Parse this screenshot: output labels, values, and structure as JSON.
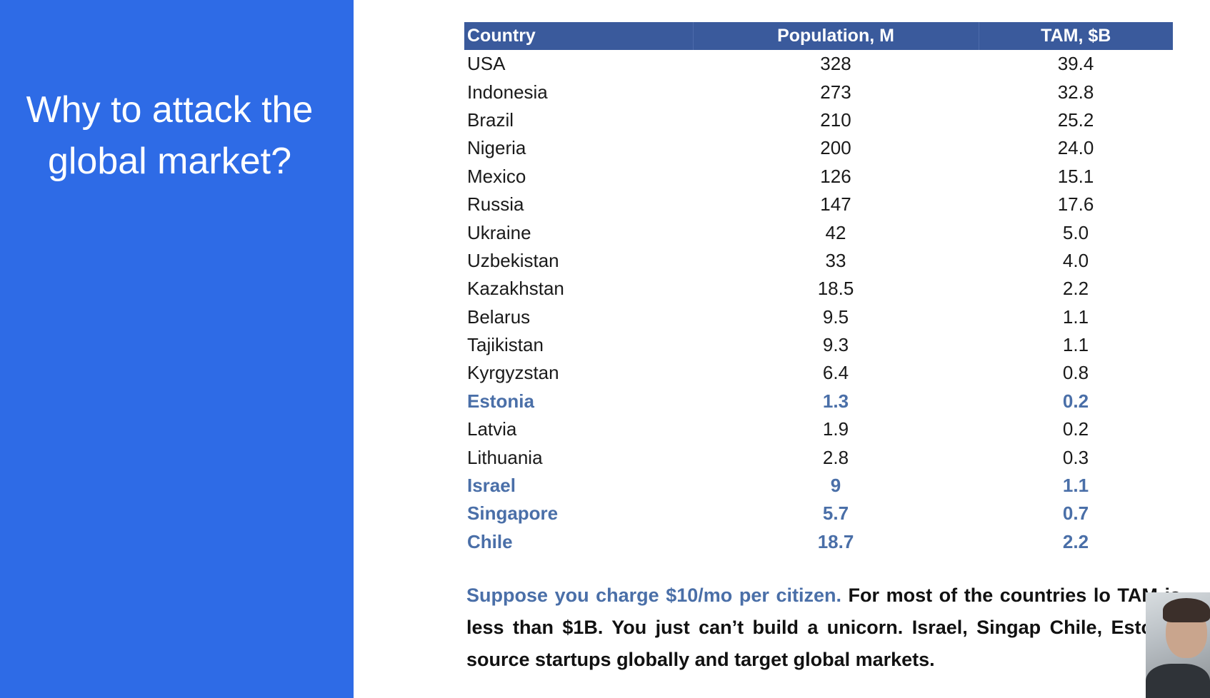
{
  "slide": {
    "title": "Why to attack the\nglobal market?",
    "colors": {
      "left_panel": "#2e6be6",
      "table_header": "#3a5a9c",
      "highlight": "#4a6fa8"
    }
  },
  "table": {
    "headers": {
      "country": "Country",
      "population": "Population, M",
      "tam": "TAM, $B"
    },
    "rows": [
      {
        "country": "USA",
        "population": "328",
        "tam": "39.4"
      },
      {
        "country": "Indonesia",
        "population": "273",
        "tam": "32.8"
      },
      {
        "country": "Brazil",
        "population": "210",
        "tam": "25.2"
      },
      {
        "country": "Nigeria",
        "population": "200",
        "tam": "24.0"
      },
      {
        "country": "Mexico",
        "population": "126",
        "tam": "15.1"
      },
      {
        "country": "Russia",
        "population": "147",
        "tam": "17.6"
      },
      {
        "country": "Ukraine",
        "population": "42",
        "tam": "5.0"
      },
      {
        "country": "Uzbekistan",
        "population": "33",
        "tam": "4.0"
      },
      {
        "country": "Kazakhstan",
        "population": "18.5",
        "tam": "2.2"
      },
      {
        "country": "Belarus",
        "population": "9.5",
        "tam": "1.1"
      },
      {
        "country": "Tajikistan",
        "population": "9.3",
        "tam": "1.1"
      },
      {
        "country": "Kyrgyzstan",
        "population": "6.4",
        "tam": "0.8"
      },
      {
        "country": "Estonia",
        "population": "1.3",
        "tam": "0.2",
        "highlight": true
      },
      {
        "country": "Latvia",
        "population": "1.9",
        "tam": "0.2"
      },
      {
        "country": "Lithuania",
        "population": "2.8",
        "tam": "0.3"
      },
      {
        "country": "Israel",
        "population": "9",
        "tam": "1.1",
        "highlight": true
      },
      {
        "country": "Singapore",
        "population": "5.7",
        "tam": "0.7",
        "highlight": true
      },
      {
        "country": "Chile",
        "population": "18.7",
        "tam": "2.2",
        "highlight": true
      }
    ]
  },
  "note": {
    "accent_text": "Suppose you charge $10/mo per citizen.",
    "body_text": "For most of the countries lo TAM is less than $1B. You just can’t build a unicorn. Israel, Singap Chile, Estonia source startups globally and target global markets."
  },
  "webcam": {
    "icon": "presenter-video-thumbnail"
  }
}
